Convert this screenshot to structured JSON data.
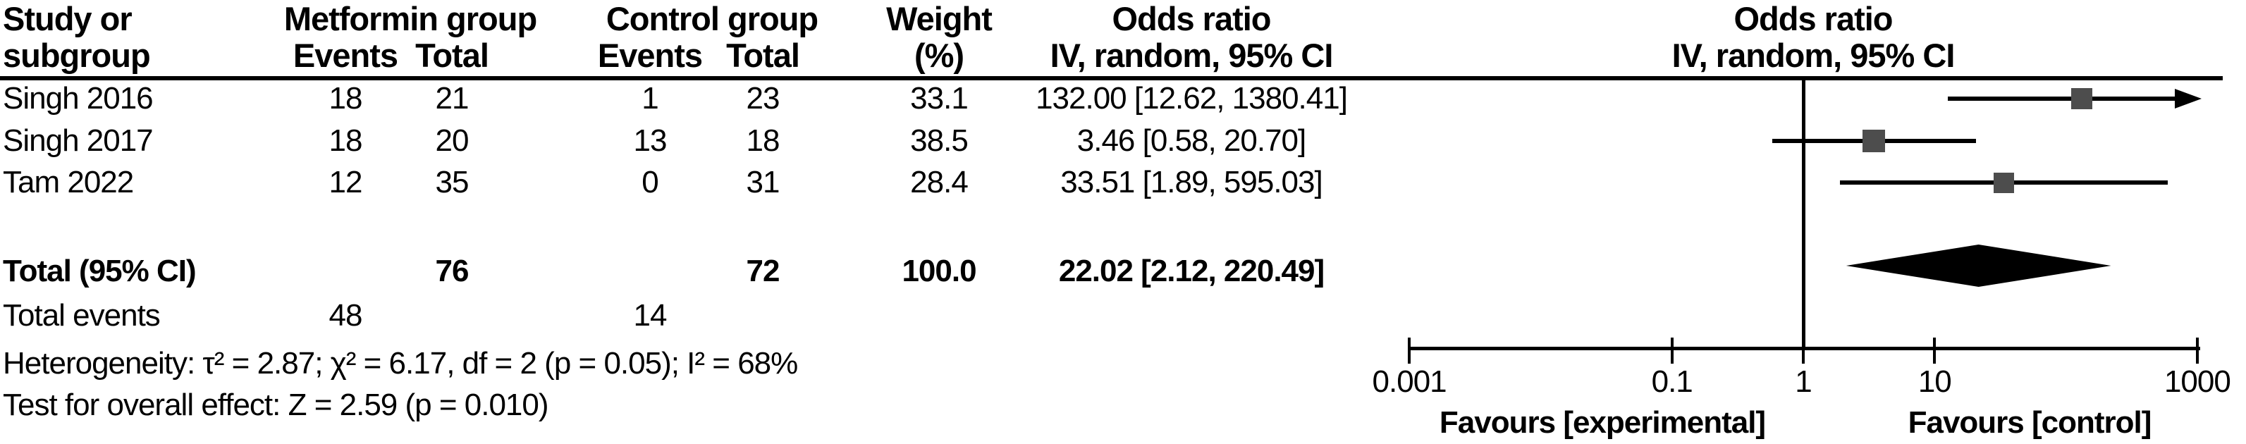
{
  "colors": {
    "text": "#000000",
    "line": "#000000",
    "marker_fill": "#4d4d4d",
    "diamond_fill": "#000000",
    "background": "#ffffff"
  },
  "header": {
    "study_line1": "Study or",
    "study_line2": "subgroup",
    "metformin_group": "Metformin group",
    "control_group": "Control group",
    "events": "Events",
    "total": "Total",
    "weight_line1": "Weight",
    "weight_line2": "(%)",
    "or_line1": "Odds ratio",
    "or_line2": "IV, random, 95% CI"
  },
  "rows": [
    {
      "study": "Singh 2016",
      "metformin_events": "18",
      "metformin_total": "21",
      "control_events": "1",
      "control_total": "23",
      "weight": "33.1",
      "or_text": "132.00 [12.62, 1380.41]"
    },
    {
      "study": "Singh 2017",
      "metformin_events": "18",
      "metformin_total": "20",
      "control_events": "13",
      "control_total": "18",
      "weight": "38.5",
      "or_text": "3.46 [0.58, 20.70]"
    },
    {
      "study": "Tam 2022",
      "metformin_events": "12",
      "metformin_total": "35",
      "control_events": "0",
      "control_total": "31",
      "weight": "28.4",
      "or_text": "33.51 [1.89, 595.03]"
    }
  ],
  "total_row": {
    "label": "Total (95% CI)",
    "metformin_total": "76",
    "control_total": "72",
    "weight": "100.0",
    "or_text": "22.02 [2.12, 220.49]"
  },
  "total_events": {
    "label": "Total events",
    "metformin": "48",
    "control": "14"
  },
  "heterogeneity": "Heterogeneity: τ² = 2.87; χ² = 6.17, df = 2 (p = 0.05); I² = 68%",
  "overall_effect": "Test for overall effect: Z = 2.59 (p = 0.010)",
  "plot": {
    "favours_left": "Favours [experimental]",
    "favours_right": "Favours [control]"
  },
  "chart_data": {
    "type": "forest",
    "title": "",
    "effect_measure": "Odds ratio, IV, random, 95% CI",
    "x_scale": "log",
    "xlim": [
      0.001,
      1000
    ],
    "x_ticks": [
      0.001,
      0.1,
      1,
      10,
      1000
    ],
    "x_tick_labels": [
      "0.001",
      "0.1",
      "1",
      "10",
      "1000"
    ],
    "null_line": 1,
    "studies": [
      {
        "name": "Singh 2016",
        "or": 132.0,
        "ci_low": 12.62,
        "ci_high": 1380.41,
        "weight_pct": 33.1,
        "ci_high_clipped": true
      },
      {
        "name": "Singh 2017",
        "or": 3.46,
        "ci_low": 0.58,
        "ci_high": 20.7,
        "weight_pct": 38.5,
        "ci_high_clipped": false
      },
      {
        "name": "Tam 2022",
        "or": 33.51,
        "ci_low": 1.89,
        "ci_high": 595.03,
        "weight_pct": 28.4,
        "ci_high_clipped": false
      }
    ],
    "total": {
      "name": "Total (95% CI)",
      "or": 22.02,
      "ci_low": 2.12,
      "ci_high": 220.49,
      "weight_pct": 100.0
    }
  }
}
